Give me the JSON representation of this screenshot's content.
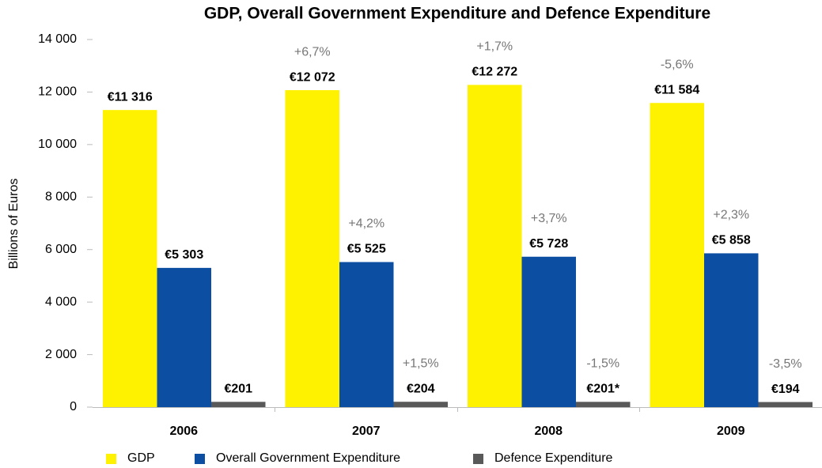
{
  "chart_data": {
    "type": "bar",
    "title": "GDP, Overall Government Expenditure and Defence Expenditure",
    "y_label": "Billions of Euros",
    "categories": [
      "2006",
      "2007",
      "2008",
      "2009"
    ],
    "series": [
      {
        "name": "GDP",
        "color": "#fff200",
        "values": [
          11316,
          12072,
          12272,
          11584
        ],
        "value_labels": [
          "€11 316",
          "€12 072",
          "€12 272",
          "€11 584"
        ],
        "annotations": [
          null,
          "+6,7%",
          "+1,7%",
          "-5,6%"
        ]
      },
      {
        "name": "Overall Government Expenditure",
        "color": "#0b4ea2",
        "values": [
          5303,
          5525,
          5728,
          5858
        ],
        "value_labels": [
          "€5 303",
          "€5 525",
          "€5 728",
          "€5 858"
        ],
        "annotations": [
          null,
          "+4,2%",
          "+3,7%",
          "+2,3%"
        ]
      },
      {
        "name": "Defence Expenditure",
        "color": "#595959",
        "values": [
          201,
          204,
          201,
          194
        ],
        "value_labels": [
          "€201",
          "€204",
          "€201*",
          "€194"
        ],
        "annotations": [
          null,
          "+1,5%",
          "-1,5%",
          "-3,5%"
        ]
      }
    ],
    "ylim": [
      0,
      14000
    ],
    "yticks": [
      0,
      {
        "value": 2000,
        "label": "2 000"
      },
      {
        "value": 4000,
        "label": "4 000"
      },
      {
        "value": 6000,
        "label": "6 000"
      },
      {
        "value": 8000,
        "label": "8 000"
      },
      {
        "value": 10000,
        "label": "10 000"
      },
      {
        "value": 12000,
        "label": "12 000"
      },
      {
        "value": 14000,
        "label": "14 000"
      }
    ],
    "legend": "bottom"
  }
}
